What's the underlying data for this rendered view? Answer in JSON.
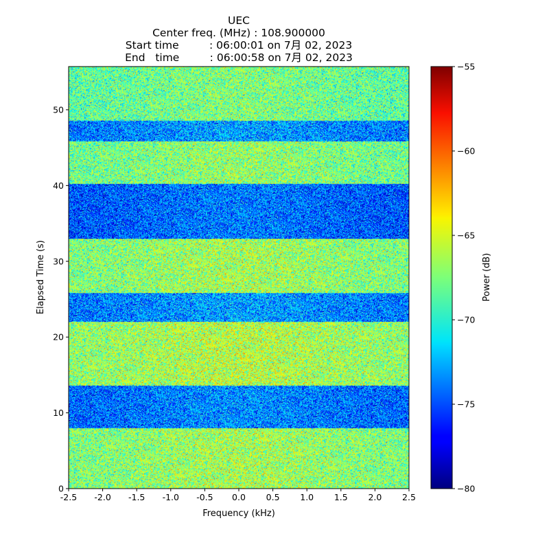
{
  "chart_data": {
    "type": "heatmap",
    "title_lines": [
      "UEC",
      "Center freq. (MHz) : 108.900000",
      "Start time         : 06:00:01 on 7月 02, 2023",
      "End   time         : 06:00:58 on 7月 02, 2023"
    ],
    "xlabel": "Frequency (kHz)",
    "ylabel": "Elapsed Time (s)",
    "xlim": [
      -2.5,
      2.5
    ],
    "ylim": [
      0,
      55.7
    ],
    "xticks": [
      -2.5,
      -2.0,
      -1.5,
      -1.0,
      -0.5,
      0.0,
      0.5,
      1.0,
      1.5,
      2.0,
      2.5
    ],
    "xtick_labels": [
      "-2.5",
      "-2.0",
      "-1.5",
      "-1.0",
      "-0.5",
      "0.0",
      "0.5",
      "1.0",
      "1.5",
      "2.0",
      "2.5"
    ],
    "yticks": [
      0,
      10,
      20,
      30,
      40,
      50
    ],
    "ytick_labels": [
      "0",
      "10",
      "20",
      "30",
      "40",
      "50"
    ],
    "colorbar": {
      "label": "Power (dB)",
      "min": -80,
      "max": -55,
      "colormap": "jet",
      "ticks": [
        -80,
        -75,
        -70,
        -65,
        -60,
        -55
      ],
      "tick_labels": [
        "−80",
        "−75",
        "−70",
        "−65",
        "−60",
        "−55"
      ]
    },
    "time_bands": [
      {
        "t_start": 0.0,
        "t_end": 8.0,
        "mean_power_db": -67.5
      },
      {
        "t_start": 8.0,
        "t_end": 13.6,
        "mean_power_db": -74.5
      },
      {
        "t_start": 13.6,
        "t_end": 22.0,
        "mean_power_db": -67.0
      },
      {
        "t_start": 22.0,
        "t_end": 25.8,
        "mean_power_db": -74.0
      },
      {
        "t_start": 25.8,
        "t_end": 33.0,
        "mean_power_db": -67.5
      },
      {
        "t_start": 33.0,
        "t_end": 40.2,
        "mean_power_db": -75.0
      },
      {
        "t_start": 40.2,
        "t_end": 45.8,
        "mean_power_db": -68.0
      },
      {
        "t_start": 45.8,
        "t_end": 48.5,
        "mean_power_db": -74.0
      },
      {
        "t_start": 48.5,
        "t_end": 55.7,
        "mean_power_db": -68.5
      }
    ]
  }
}
